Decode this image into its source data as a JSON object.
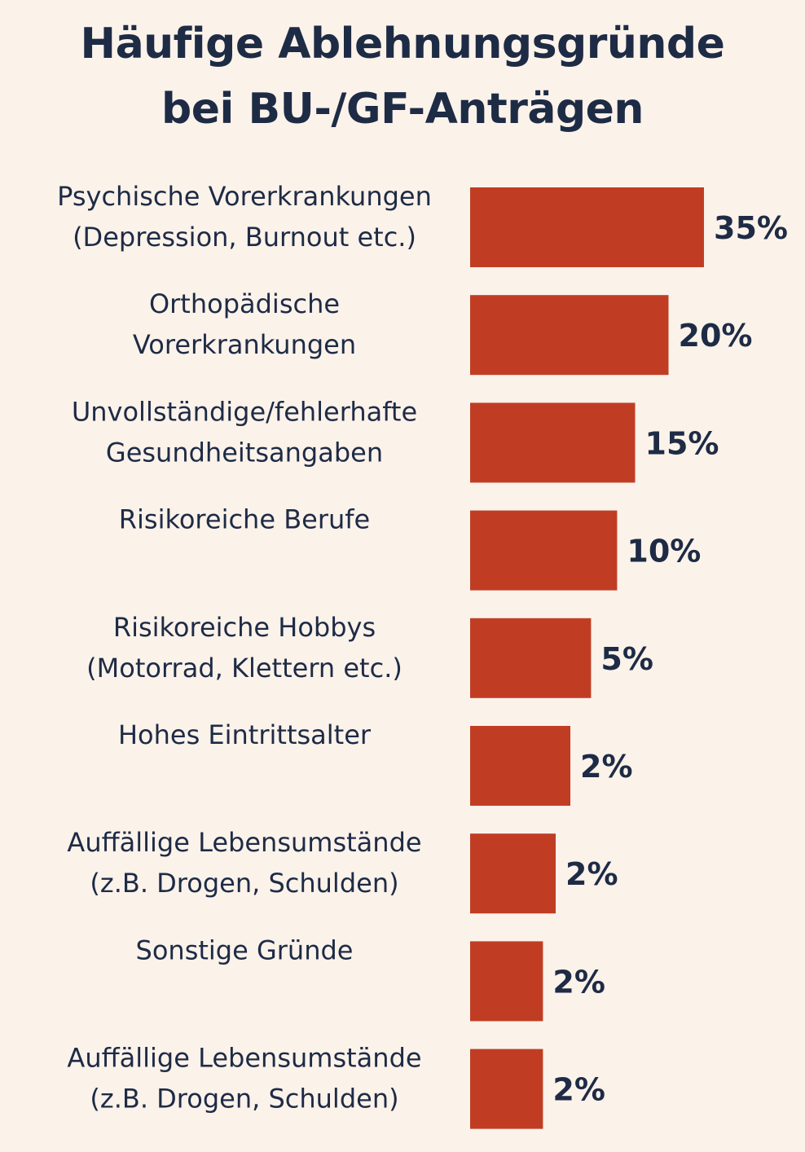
{
  "chart_data": {
    "type": "bar",
    "orientation": "horizontal",
    "title": [
      "Häufige Ablehnungsgründe",
      "bei BU-/GF-Anträgen"
    ],
    "categories": [
      [
        "Psychische Vorerkrankungen",
        "(Depression, Burnout etc.)"
      ],
      [
        "Orthopädische",
        "Vorerkrankungen"
      ],
      [
        "Unvollständige/fehlerhafte",
        "Gesundheitsangaben"
      ],
      [
        "Risikoreiche Berufe"
      ],
      [
        "Risikoreiche Hobbys",
        "(Motorrad, Klettern etc.)"
      ],
      [
        "Hohes Eintrittsalter"
      ],
      [
        "Auffällige Lebensumstände",
        "(z.B. Drogen, Schulden)"
      ],
      [
        "Sonstige Gründe"
      ],
      [
        "Auffällige Lebensumstände",
        "(z.B. Drogen, Schulden)"
      ]
    ],
    "values": [
      35,
      20,
      15,
      10,
      5,
      2,
      2,
      2,
      2
    ],
    "bar_lengths": [
      35,
      29.7,
      24.7,
      22,
      18.1,
      15,
      12.8,
      10.9,
      10.9
    ],
    "value_labels": [
      "35%",
      "20%",
      "15%",
      "10%",
      "5%",
      "2%",
      "2%",
      "2%",
      "2%"
    ],
    "xlabel": "",
    "ylabel": "",
    "xlim": [
      0,
      35
    ],
    "grid": false,
    "legend": "none"
  },
  "colors": {
    "background": "#fbf2ea",
    "bar": "#c03d24",
    "text": "#1e2b45"
  }
}
